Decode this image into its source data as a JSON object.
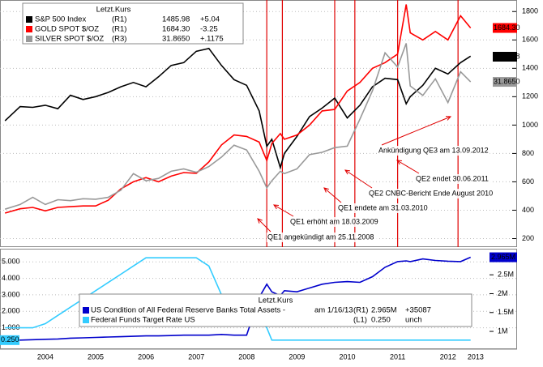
{
  "chart_data": [
    {
      "type": "line",
      "legend_title": "Letzt.Kurs",
      "x": [
        2003.7,
        2004.0,
        2004.25,
        2004.5,
        2004.75,
        2005.0,
        2005.25,
        2005.5,
        2005.75,
        2006.0,
        2006.25,
        2006.5,
        2006.75,
        2007.0,
        2007.25,
        2007.5,
        2007.75,
        2008.0,
        2008.25,
        2008.5,
        2008.75,
        2008.9,
        2009.0,
        2009.17,
        2009.25,
        2009.5,
        2009.75,
        2010.0,
        2010.25,
        2010.5,
        2010.75,
        2011.0,
        2011.25,
        2011.5,
        2011.67,
        2011.75,
        2012.0,
        2012.25,
        2012.5,
        2012.75,
        2012.95
      ],
      "xlim": [
        2003.6,
        2013.1
      ],
      "ylim": [
        140,
        1870
      ],
      "yticks": [
        200,
        400,
        600,
        800,
        1000,
        1200,
        1400,
        1600,
        1800
      ],
      "y3lim": [
        -3.0,
        48.8
      ],
      "grid": true,
      "series": [
        {
          "name": "S&P 500 Index",
          "axis_tag": "(R1)",
          "last": "1485.98",
          "change": "+5.04",
          "color": "#000000",
          "axis": "y",
          "values": [
            1030,
            1130,
            1125,
            1140,
            1115,
            1210,
            1180,
            1200,
            1230,
            1270,
            1300,
            1270,
            1340,
            1420,
            1440,
            1520,
            1540,
            1420,
            1320,
            1280,
            1100,
            850,
            900,
            700,
            800,
            920,
            1060,
            1120,
            1190,
            1050,
            1140,
            1270,
            1330,
            1320,
            1150,
            1200,
            1280,
            1400,
            1360,
            1440,
            1485.98
          ]
        },
        {
          "name": "GOLD SPOT $/OZ",
          "axis_tag": "(R1)",
          "last": "1684.30",
          "change": "-3.25",
          "color": "#ff0000",
          "axis": "y",
          "values": [
            380,
            410,
            420,
            395,
            420,
            425,
            430,
            430,
            470,
            550,
            600,
            630,
            600,
            640,
            665,
            660,
            740,
            860,
            930,
            920,
            880,
            750,
            870,
            940,
            900,
            930,
            1000,
            1100,
            1110,
            1240,
            1300,
            1400,
            1440,
            1500,
            1850,
            1650,
            1600,
            1660,
            1600,
            1770,
            1684.3
          ]
        },
        {
          "name": "SILVER SPOT $/OZ",
          "axis_tag": "(R3)",
          "last": "31.8650",
          "change": "+.1175",
          "color": "#999999",
          "axis": "y3",
          "values": [
            5.0,
            6.0,
            7.5,
            6.0,
            7.0,
            6.8,
            7.2,
            7.1,
            7.5,
            9.0,
            12.5,
            11.0,
            11.5,
            13.0,
            13.5,
            12.8,
            14.0,
            16.0,
            18.5,
            17.5,
            13.0,
            9.5,
            11.0,
            13.0,
            12.5,
            13.5,
            16.5,
            17.0,
            18.0,
            18.3,
            24.0,
            30.0,
            38.0,
            35.0,
            40.0,
            31.0,
            29.0,
            32.5,
            27.5,
            34.0,
            31.865
          ]
        }
      ],
      "annotations": [
        {
          "text": "QE1 angekündigt am 25.11.2008",
          "x": 2008.9
        },
        {
          "text": "QE1 erhöht am 18.03.2009",
          "x": 2009.21
        },
        {
          "text": "QE1 endete am 31.03.2010",
          "x": 2010.25
        },
        {
          "text": "QE2 CNBC-Bericht Ende August 2010",
          "x": 2010.65
        },
        {
          "text": "QE2 endet 30.06.2011",
          "x": 2011.5
        },
        {
          "text": "Ankündigung QE3 am 13.09.2012",
          "x": 2012.7
        }
      ]
    },
    {
      "type": "line",
      "legend_title": "Letzt.Kurs",
      "x": [
        2003.7,
        2004.0,
        2004.25,
        2004.5,
        2004.75,
        2005.0,
        2005.25,
        2005.5,
        2005.75,
        2006.0,
        2006.25,
        2006.5,
        2006.75,
        2007.0,
        2007.25,
        2007.5,
        2007.75,
        2008.0,
        2008.25,
        2008.5,
        2008.75,
        2008.9,
        2009.0,
        2009.17,
        2009.25,
        2009.5,
        2009.75,
        2010.0,
        2010.25,
        2010.5,
        2010.75,
        2011.0,
        2011.25,
        2011.5,
        2011.67,
        2011.75,
        2012.0,
        2012.25,
        2012.5,
        2012.75,
        2012.95
      ],
      "xlim": [
        2003.6,
        2013.1
      ],
      "xticks": [
        {
          "value": 2004.5,
          "label": "2004"
        },
        {
          "value": 2005.5,
          "label": "2005"
        },
        {
          "value": 2006.5,
          "label": "2006"
        },
        {
          "value": 2007.5,
          "label": "2007"
        },
        {
          "value": 2008.5,
          "label": "2008"
        },
        {
          "value": 2009.5,
          "label": "2009"
        },
        {
          "value": 2010.5,
          "label": "2010"
        },
        {
          "value": 2011.5,
          "label": "2011"
        },
        {
          "value": 2012.5,
          "label": "2012"
        },
        {
          "value": 2013.05,
          "label": "2013"
        }
      ],
      "ylim": [
        -0.25,
        5.75
      ],
      "yticks": [
        {
          "value": 1,
          "label": "1.000"
        },
        {
          "value": 2,
          "label": "2.000"
        },
        {
          "value": 3,
          "label": "3.000"
        },
        {
          "value": 4,
          "label": "4.000"
        },
        {
          "value": 5,
          "label": "5.000"
        }
      ],
      "y2lim": [
        0.55,
        3.17
      ],
      "y2ticks": [
        {
          "value": 1,
          "label": "1M"
        },
        {
          "value": 1.5,
          "label": "1.5M"
        },
        {
          "value": 2,
          "label": "2M"
        },
        {
          "value": 2.5,
          "label": "2.5M"
        }
      ],
      "series": [
        {
          "name": "US Condition of All Federal Reserve Banks Total Assets -",
          "date": "am 1/16/13",
          "axis_tag": "(R1)",
          "last": "2.965M",
          "change": "+35087",
          "color": "#0000cc",
          "axis": "y2",
          "values": [
            0.76,
            0.77,
            0.78,
            0.79,
            0.8,
            0.82,
            0.83,
            0.84,
            0.85,
            0.86,
            0.87,
            0.88,
            0.88,
            0.89,
            0.9,
            0.9,
            0.9,
            0.92,
            0.9,
            0.9,
            1.9,
            2.25,
            2.05,
            1.95,
            2.08,
            2.05,
            2.15,
            2.25,
            2.3,
            2.32,
            2.3,
            2.45,
            2.7,
            2.85,
            2.87,
            2.85,
            2.92,
            2.88,
            2.86,
            2.85,
            2.965
          ]
        },
        {
          "name": "Federal Funds Target Rate US",
          "axis_tag": "(L1)",
          "last": "0.250",
          "change": "unch",
          "color": "#33ccff",
          "axis": "y",
          "values": [
            1.0,
            1.0,
            1.0,
            1.25,
            1.75,
            2.25,
            2.75,
            3.25,
            3.75,
            4.25,
            4.75,
            5.25,
            5.25,
            5.25,
            5.25,
            5.25,
            4.75,
            3.0,
            2.25,
            2.0,
            1.5,
            1.0,
            0.25,
            0.25,
            0.25,
            0.25,
            0.25,
            0.25,
            0.25,
            0.25,
            0.25,
            0.25,
            0.25,
            0.25,
            0.25,
            0.25,
            0.25,
            0.25,
            0.25,
            0.25,
            0.25
          ]
        }
      ]
    }
  ]
}
